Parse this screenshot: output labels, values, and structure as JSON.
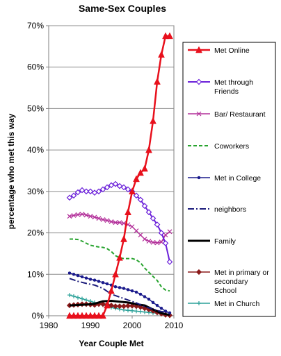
{
  "chart_data": {
    "type": "line",
    "title": "Same-Sex Couples",
    "xlabel": "Year Couple Met",
    "ylabel": "percentage who met this way",
    "xlim": [
      1980,
      2010
    ],
    "ylim": [
      0,
      70
    ],
    "x_ticks": [
      "1980",
      "1990",
      "2000",
      "2010"
    ],
    "y_ticks": [
      "0%",
      "10%",
      "20%",
      "30%",
      "40%",
      "50%",
      "60%",
      "70%"
    ],
    "legend_position": "right",
    "grid": true,
    "series": [
      {
        "name": "Met Online",
        "color": "#e8101c",
        "marker": "triangle",
        "line_width": 2.5,
        "dash": "",
        "x": [
          1985,
          1986,
          1987,
          1988,
          1989,
          1990,
          1991,
          1992,
          1993,
          1994,
          1995,
          1996,
          1997,
          1998,
          1999,
          2000,
          2001,
          2002,
          2003,
          2004,
          2005,
          2006,
          2007,
          2008,
          2009
        ],
        "values": [
          0,
          0,
          0,
          0,
          0,
          0,
          0,
          0,
          0,
          2.5,
          6,
          10,
          14,
          18.5,
          25,
          30,
          33,
          34.5,
          35.5,
          40,
          47,
          56.5,
          63,
          67.5,
          67.5
        ]
      },
      {
        "name": "Met through Friends",
        "color": "#6a1fd9",
        "marker": "diamond",
        "line_width": 2,
        "dash": "",
        "x": [
          1985,
          1986,
          1987,
          1988,
          1989,
          1990,
          1991,
          1992,
          1993,
          1994,
          1995,
          1996,
          1997,
          1998,
          1999,
          2000,
          2001,
          2002,
          2003,
          2004,
          2005,
          2006,
          2007,
          2008,
          2009
        ],
        "values": [
          28.5,
          29,
          29.8,
          30.3,
          30,
          30,
          29.7,
          30,
          30.5,
          31,
          31.5,
          31.8,
          31.3,
          31,
          30.5,
          30,
          29,
          28,
          26.5,
          25,
          23.5,
          22,
          20,
          17.5,
          13
        ]
      },
      {
        "name": "Bar/ Restaurant",
        "color": "#b3309a",
        "marker": "cross",
        "line_width": 1.5,
        "dash": "",
        "x": [
          1985,
          1986,
          1987,
          1988,
          1989,
          1990,
          1991,
          1992,
          1993,
          1994,
          1995,
          1996,
          1997,
          1998,
          1999,
          2000,
          2001,
          2002,
          2003,
          2004,
          2005,
          2006,
          2007,
          2008,
          2009
        ],
        "values": [
          24,
          24.2,
          24.4,
          24.5,
          24.3,
          24,
          23.8,
          23.5,
          23.2,
          23,
          22.7,
          22.5,
          22.5,
          22.3,
          22,
          21.5,
          20.5,
          19.5,
          18.5,
          18,
          17.7,
          17.6,
          17.8,
          19.5,
          20.3
        ]
      },
      {
        "name": "Coworkers",
        "color": "#27a32e",
        "marker": "none",
        "line_width": 2,
        "dash": "5,3",
        "x": [
          1985,
          1986,
          1987,
          1988,
          1989,
          1990,
          1991,
          1992,
          1993,
          1994,
          1995,
          1996,
          1997,
          1998,
          1999,
          2000,
          2001,
          2002,
          2003,
          2004,
          2005,
          2006,
          2007,
          2008,
          2009
        ],
        "values": [
          18.5,
          18.5,
          18.4,
          18,
          17.5,
          17,
          16.8,
          16.6,
          16.5,
          16.2,
          15.5,
          14.5,
          14,
          13.8,
          13.8,
          13.8,
          13.5,
          12.8,
          11.5,
          10.5,
          9.5,
          8.5,
          7,
          6.2,
          6
        ]
      },
      {
        "name": "Met in College",
        "color": "#1a1a8c",
        "marker": "dot",
        "line_width": 1.5,
        "dash": "",
        "x": [
          1985,
          1986,
          1987,
          1988,
          1989,
          1990,
          1991,
          1992,
          1993,
          1994,
          1995,
          1996,
          1997,
          1998,
          1999,
          2000,
          2001,
          2002,
          2003,
          2004,
          2005,
          2006,
          2007,
          2008,
          2009
        ],
        "values": [
          10.3,
          10,
          9.7,
          9.4,
          9.1,
          8.8,
          8.6,
          8.3,
          8,
          7.7,
          7.4,
          7,
          6.8,
          6.6,
          6.3,
          6,
          5.7,
          5.2,
          4.6,
          4,
          3.2,
          2.5,
          1.8,
          1.1,
          0.7
        ]
      },
      {
        "name": "neighbors",
        "color": "#1a1a7a",
        "marker": "none",
        "line_width": 2,
        "dash": "9,3,2,3",
        "x": [
          1985,
          1987,
          1989,
          1991,
          1993,
          1995,
          1997,
          1999,
          2001,
          2003,
          2005,
          2007,
          2009
        ],
        "values": [
          9,
          8.3,
          7.8,
          7.4,
          6.6,
          5.2,
          4.5,
          3.8,
          3.1,
          2.2,
          1.6,
          1,
          0.8
        ]
      },
      {
        "name": "Family",
        "color": "#000000",
        "marker": "none",
        "line_width": 3,
        "dash": "",
        "x": [
          1985,
          1987,
          1989,
          1991,
          1993,
          1995,
          1997,
          1999,
          2001,
          2003,
          2005,
          2007,
          2009
        ],
        "values": [
          2.5,
          2.6,
          2.7,
          2.9,
          3.5,
          3.6,
          3.4,
          3.2,
          2.8,
          2.5,
          1.5,
          0.6,
          0.2
        ]
      },
      {
        "name": "Met in primary or secondary School",
        "color": "#8b1a1a",
        "marker": "diamond-filled",
        "line_width": 1.5,
        "dash": "",
        "x": [
          1985,
          1986,
          1987,
          1988,
          1989,
          1990,
          1991,
          1992,
          1993,
          1994,
          1995,
          1996,
          1997,
          1998,
          1999,
          2000,
          2001,
          2002,
          2003,
          2004,
          2005,
          2006,
          2007,
          2008,
          2009
        ],
        "values": [
          2.5,
          2.6,
          2.7,
          2.8,
          2.8,
          2.7,
          2.6,
          2.8,
          2.8,
          2.7,
          2.5,
          2.3,
          2.3,
          2.3,
          2.4,
          2.4,
          2.3,
          2.1,
          1.8,
          1.5,
          1.2,
          0.8,
          0.5,
          0.2,
          0.1
        ]
      },
      {
        "name": "Met in Church",
        "color": "#2aa198",
        "marker": "plus",
        "line_width": 1.5,
        "dash": "",
        "x": [
          1985,
          1986,
          1987,
          1988,
          1989,
          1990,
          1991,
          1992,
          1993,
          1994,
          1995,
          1996,
          1997,
          1998,
          1999,
          2000,
          2001,
          2002,
          2003,
          2004,
          2005,
          2006,
          2007,
          2008,
          2009
        ],
        "values": [
          5,
          4.7,
          4.4,
          4.1,
          3.8,
          3.5,
          3.2,
          2.9,
          2.6,
          2.3,
          2,
          1.8,
          1.6,
          1.4,
          1.3,
          1.2,
          1.1,
          1,
          0.9,
          0.8,
          0.7,
          0.6,
          0.5,
          0.4,
          0.3
        ]
      }
    ]
  }
}
